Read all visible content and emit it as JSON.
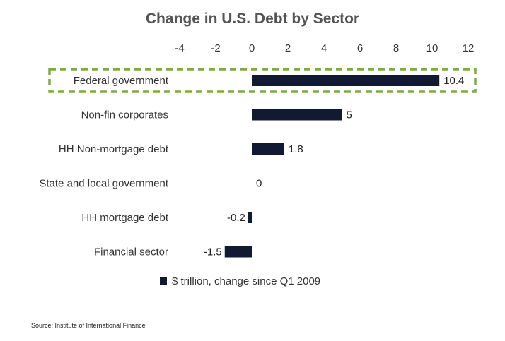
{
  "chart_data": {
    "type": "bar",
    "orientation": "horizontal",
    "title": "Change in U.S. Debt by Sector",
    "categories": [
      "Federal government",
      "Non-fin corporates",
      "HH Non-mortgage debt",
      "State and local government",
      "HH mortgage debt",
      "Financial sector"
    ],
    "series": [
      {
        "name": "$ trillion, change since Q1 2009",
        "values": [
          10.4,
          5,
          1.8,
          0,
          -0.2,
          -1.5
        ],
        "data_labels": [
          "10.4",
          "5",
          "1.8",
          "0",
          "-0.2",
          "-1.5"
        ],
        "color": "#121a33"
      }
    ],
    "xlim": [
      -4,
      12
    ],
    "xticks": [
      -4,
      -2,
      0,
      2,
      4,
      6,
      8,
      10,
      12
    ],
    "xtick_labels": [
      "-4",
      "-2",
      "0",
      "2",
      "4",
      "6",
      "8",
      "10",
      "12"
    ],
    "x_axis_position": "top",
    "grid": false,
    "legend_position": "bottom",
    "highlight": {
      "category": "Federal government",
      "style": "dashed-box",
      "color": "#7cad3e"
    }
  },
  "source": "Source: Institute of International Finance"
}
